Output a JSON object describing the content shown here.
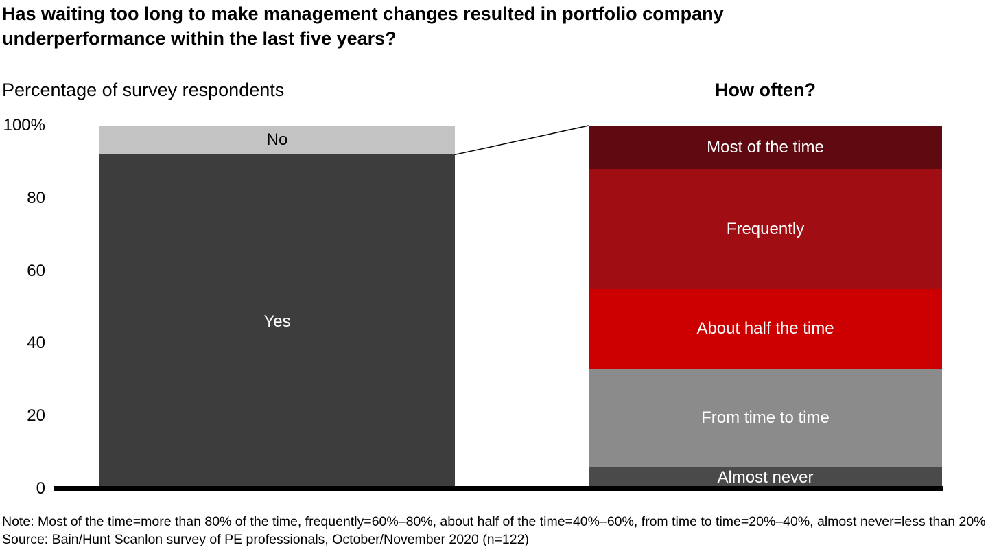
{
  "note": "Note: Most of the time=more than 80% of the time, frequently=60%–80%, about half of the time=40%–60%, from time to time=20%–40%, almost never=less than 20%",
  "source": "Source: Bain/Hunt Scanlon survey of PE professionals, October/November 2020 (n=122)",
  "chart_data": {
    "type": "bar",
    "subtype": "stacked-percentage-with-breakout",
    "title": "Has waiting too long to make management changes resulted in portfolio company underperformance within the last five years?",
    "xlabel": "",
    "ylabel": "Percentage of survey respondents",
    "ylim": [
      0,
      100
    ],
    "grid": false,
    "legend": "labels-inside-segments",
    "y_axis": {
      "ticks": [
        {
          "value": 100,
          "label": "100%"
        },
        {
          "value": 80,
          "label": "80"
        },
        {
          "value": 60,
          "label": "60"
        },
        {
          "value": 40,
          "label": "40"
        },
        {
          "value": 20,
          "label": "20"
        },
        {
          "value": 0,
          "label": "0"
        }
      ]
    },
    "bars": [
      {
        "name": "response",
        "header": "Percentage of survey respondents",
        "segments": [
          {
            "label": "No",
            "value": 8,
            "color": "#c3c3c3",
            "label_color": "#000000"
          },
          {
            "label": "Yes",
            "value": 92,
            "color": "#3d3d3d",
            "label_color": "#ffffff"
          }
        ]
      },
      {
        "name": "how-often",
        "header": "How often?",
        "segments": [
          {
            "label": "Most of the time",
            "value": 12,
            "color": "#5e0a10",
            "label_color": "#ffffff"
          },
          {
            "label": "Frequently",
            "value": 33,
            "color": "#a00d12",
            "label_color": "#ffffff"
          },
          {
            "label": "About half the time",
            "value": 22,
            "color": "#cc0000",
            "label_color": "#ffffff"
          },
          {
            "label": "From time to time",
            "value": 27,
            "color": "#8b8b8b",
            "label_color": "#ffffff"
          },
          {
            "label": "Almost never",
            "value": 6,
            "color": "#4a4a4a",
            "label_color": "#ffffff"
          }
        ]
      }
    ],
    "connector": {
      "from": "left-bar yes-top (92%)",
      "to": "right-bar top (100%)"
    }
  }
}
